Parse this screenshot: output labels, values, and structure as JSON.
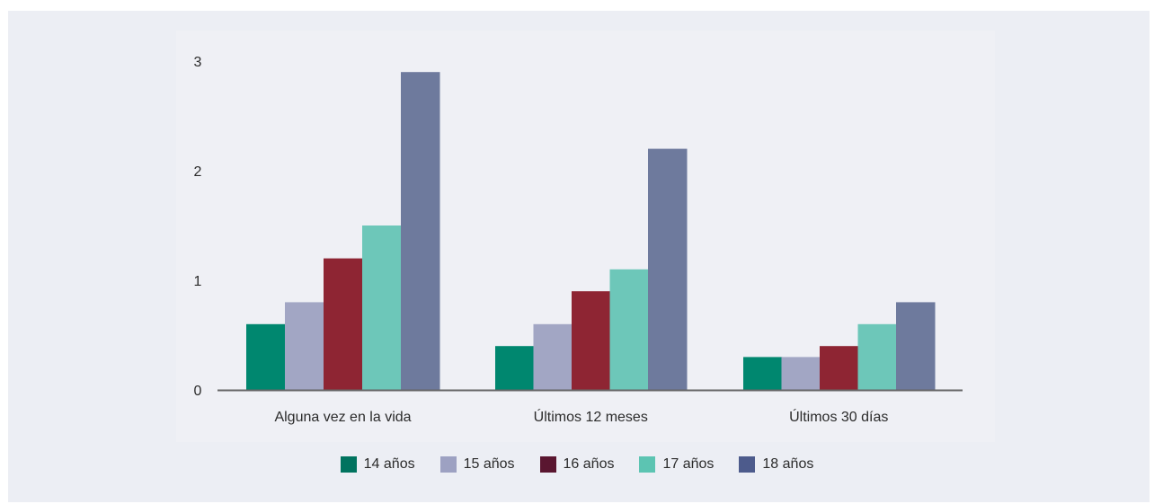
{
  "chart_data": {
    "type": "bar",
    "title": "",
    "xlabel": "",
    "ylabel": "",
    "categories": [
      "Alguna vez en la vida",
      "Últimos 12 meses",
      "Últimos 30 días"
    ],
    "series": [
      {
        "name": "14 años",
        "values": [
          0.6,
          0.4,
          0.3
        ],
        "color": "#00876f",
        "legend_color": "#00735f"
      },
      {
        "name": "15 años",
        "values": [
          0.8,
          0.6,
          0.3
        ],
        "color": "#a2a6c4",
        "legend_color": "#9da1c2"
      },
      {
        "name": "16 años",
        "values": [
          1.2,
          0.9,
          0.4
        ],
        "color": "#8e2533",
        "legend_color": "#5a1630"
      },
      {
        "name": "17 años",
        "values": [
          1.5,
          1.1,
          0.6
        ],
        "color": "#6dc7b9",
        "legend_color": "#5cc4b2"
      },
      {
        "name": "18 años",
        "values": [
          2.9,
          2.2,
          0.8
        ],
        "color": "#6e7a9d",
        "legend_color": "#4d5b8c"
      }
    ],
    "ylim": [
      0,
      3
    ],
    "yticks": [
      "0",
      "1",
      "2",
      "3"
    ],
    "grid": false,
    "legend_position": "bottom-center"
  }
}
